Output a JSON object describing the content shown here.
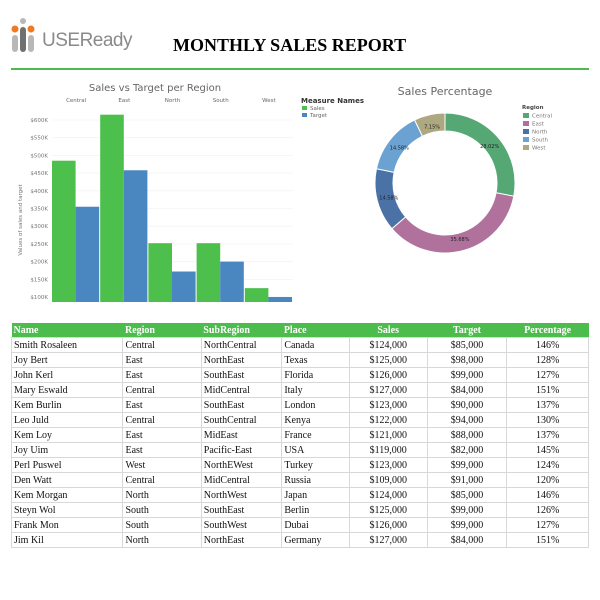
{
  "header": {
    "logo_text": "USEReady",
    "title": "MONTHLY SALES REPORT",
    "accent": "#4dbb4d"
  },
  "chart_data": [
    {
      "type": "bar",
      "title": "Sales vs Target per Region",
      "ylabel": "Values of sales and target",
      "categories": [
        "Central",
        "East",
        "North",
        "South",
        "West"
      ],
      "series": [
        {
          "name": "Sales",
          "color": "#4cbf4c",
          "values": [
            485000,
            615000,
            252000,
            252000,
            125000
          ]
        },
        {
          "name": "Target",
          "color": "#4a87c0",
          "values": [
            355000,
            458000,
            172000,
            200000,
            100000
          ]
        }
      ],
      "yticks": [
        "$100K",
        "$150K",
        "$200K",
        "$250K",
        "$300K",
        "$350K",
        "$400K",
        "$450K",
        "$500K",
        "$550K",
        "$600K"
      ],
      "ytick_values": [
        100000,
        150000,
        200000,
        250000,
        300000,
        350000,
        400000,
        450000,
        500000,
        550000,
        600000
      ],
      "ylim": [
        85000,
        640000
      ],
      "legend_title": "Measure Names",
      "legend_position": "top-right",
      "grid": true
    },
    {
      "type": "pie",
      "donut": true,
      "title": "Sales Percentage",
      "legend_title": "Region",
      "legend_position": "right",
      "labels": [
        "Central",
        "East",
        "North",
        "South",
        "West"
      ],
      "values": [
        28.02,
        35.68,
        14.58,
        14.58,
        7.15
      ],
      "value_labels": [
        "28.02%",
        "35.68%",
        "14.58%",
        "14.58%",
        "7.15%"
      ],
      "colors": [
        "#55a773",
        "#b0729c",
        "#4b72a6",
        "#6ba2d2",
        "#ada87f"
      ]
    }
  ],
  "table": {
    "headers": [
      "Name",
      "Region",
      "SubRegion",
      "Place",
      "Sales",
      "Target",
      "Percentage"
    ],
    "rows": [
      [
        "Smith Rosaleen",
        "Central",
        "NorthCentral",
        "Canada",
        "$124,000",
        "$85,000",
        "146%"
      ],
      [
        "Joy Bert",
        "East",
        "NorthEast",
        "Texas",
        "$125,000",
        "$98,000",
        "128%"
      ],
      [
        "John Kerl",
        "East",
        "SouthEast",
        "Florida",
        "$126,000",
        "$99,000",
        "127%"
      ],
      [
        "Mary Eswald",
        "Central",
        "MidCentral",
        "Italy",
        "$127,000",
        "$84,000",
        "151%"
      ],
      [
        "Kem Burlin",
        "East",
        "SouthEast",
        "London",
        "$123,000",
        "$90,000",
        "137%"
      ],
      [
        "Leo Juld",
        "Central",
        "SouthCentral",
        "Kenya",
        "$122,000",
        "$94,000",
        "130%"
      ],
      [
        "Kem Loy",
        "East",
        "MidEast",
        "France",
        "$121,000",
        "$88,000",
        "137%"
      ],
      [
        "Joy Uim",
        "East",
        "Pacific-East",
        "USA",
        "$119,000",
        "$82,000",
        "145%"
      ],
      [
        "Perl  Puswel",
        "West",
        "NorthEWest",
        "Turkey",
        "$123,000",
        "$99,000",
        "124%"
      ],
      [
        "Den Watt",
        "Central",
        "MidCentral",
        "Russia",
        "$109,000",
        "$91,000",
        "120%"
      ],
      [
        "Kem Morgan",
        "North",
        "NorthWest",
        "Japan",
        "$124,000",
        "$85,000",
        "146%"
      ],
      [
        "Steyn Wol",
        "South",
        "SouthEast",
        "Berlin",
        "$125,000",
        "$99,000",
        "126%"
      ],
      [
        "Frank Mon",
        "South",
        "SouthWest",
        "Dubai",
        "$126,000",
        "$99,000",
        "127%"
      ],
      [
        "Jim Kil",
        "North",
        "NorthEast",
        "Germany",
        "$127,000",
        "$84,000",
        "151%"
      ]
    ]
  }
}
